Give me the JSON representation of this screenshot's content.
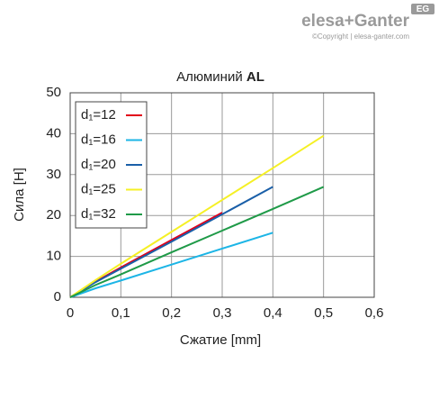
{
  "brand": {
    "logo": "elesa+Ganter",
    "badge": "EG",
    "copyright": "©Copyright | elesa-ganter.com"
  },
  "chart_data": {
    "type": "line",
    "title": "Алюминий",
    "title_bold": "AL",
    "x_label": "Сжатие [mm]",
    "y_label": "Сила [H]",
    "xlim": [
      0,
      0.6
    ],
    "ylim": [
      0,
      50
    ],
    "xticks": [
      0,
      {
        "value": 0.1,
        "label": "0,1"
      },
      {
        "value": 0.2,
        "label": "0,2"
      },
      {
        "value": 0.3,
        "label": "0,3"
      },
      {
        "value": 0.4,
        "label": "0,4"
      },
      {
        "value": 0.5,
        "label": "0,5"
      },
      {
        "value": 0.6,
        "label": "0,6"
      }
    ],
    "yticks": [
      0,
      10,
      20,
      30,
      40,
      50
    ],
    "grid": true,
    "legend": "upper left",
    "series": [
      {
        "name": "d₁=12",
        "color": "#e2001a",
        "x": [
          0,
          0.05,
          0.1,
          0.2,
          0.3
        ],
        "values": [
          0,
          3.8,
          7.3,
          14,
          20.7
        ]
      },
      {
        "name": "d₁=16",
        "color": "#1cb5e6",
        "x": [
          0,
          0.05,
          0.1,
          0.2,
          0.3,
          0.4
        ],
        "values": [
          0,
          2.2,
          4.1,
          8,
          11.9,
          15.8
        ]
      },
      {
        "name": "d₁=20",
        "color": "#1a5fa8",
        "x": [
          0,
          0.05,
          0.1,
          0.2,
          0.3,
          0.4
        ],
        "values": [
          0,
          3.7,
          7,
          13.6,
          20.3,
          27
        ]
      },
      {
        "name": "d₁=25",
        "color": "#f5f025",
        "x": [
          0,
          0.05,
          0.1,
          0.2,
          0.3,
          0.4,
          0.5
        ],
        "values": [
          0,
          4.2,
          8.2,
          16,
          23.8,
          31.6,
          39.5
        ]
      },
      {
        "name": "d₁=32",
        "color": "#1f9a48",
        "x": [
          0,
          0.05,
          0.1,
          0.2,
          0.3,
          0.4,
          0.5
        ],
        "values": [
          0,
          3,
          5.6,
          11,
          16.3,
          21.6,
          27
        ]
      }
    ]
  }
}
